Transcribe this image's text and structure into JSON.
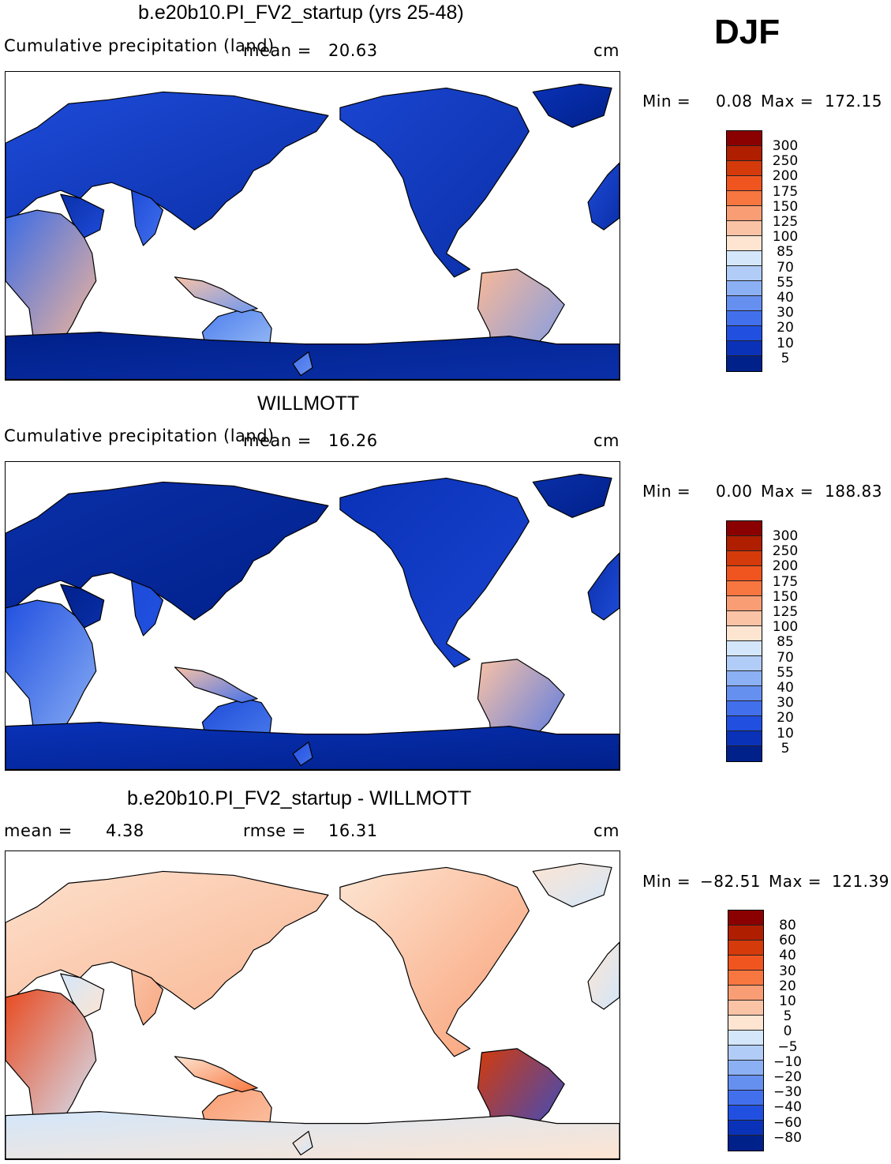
{
  "season": "DJF",
  "panels": [
    {
      "title": "b.e20b10.PI_FV2_startup (yrs 25-48)",
      "variable": "Cumulative precipitation (land)",
      "mean_label": "mean =",
      "mean_value": "20.63",
      "units": "cm",
      "min_label": "Min =",
      "min_value": "0.08",
      "max_label": "Max =",
      "max_value": "172.15",
      "field": "model"
    },
    {
      "title": "WILLMOTT",
      "variable": "Cumulative precipitation (land)",
      "mean_label": "mean =",
      "mean_value": "16.26",
      "units": "cm",
      "min_label": "Min =",
      "min_value": "0.00",
      "max_label": "Max =",
      "max_value": "188.83",
      "field": "obs"
    },
    {
      "title": "b.e20b10.PI_FV2_startup - WILLMOTT",
      "mean_label": "mean =",
      "mean_value": "4.38",
      "rmse_label": "rmse =",
      "rmse_value": "16.31",
      "units": "cm",
      "min_label": "Min =",
      "min_value": "−82.51",
      "max_label": "Max =",
      "max_value": "121.39",
      "field": "diff"
    }
  ],
  "colorbars": {
    "precip": {
      "labels": [
        "300",
        "250",
        "200",
        "175",
        "150",
        "125",
        "100",
        "85",
        "70",
        "55",
        "40",
        "30",
        "20",
        "10",
        "5"
      ],
      "colors": [
        "#8b0000",
        "#b01e00",
        "#d43a0a",
        "#f05520",
        "#f8763f",
        "#f99e74",
        "#fbc3a5",
        "#fde5d2",
        "#d3e6fa",
        "#b1cdf7",
        "#8cb0f4",
        "#6690f0",
        "#4270ec",
        "#2150e0",
        "#0a32b8",
        "#00208a"
      ]
    },
    "diff": {
      "labels": [
        "80",
        "60",
        "40",
        "30",
        "20",
        "10",
        "5",
        "0",
        "−5",
        "−10",
        "−20",
        "−30",
        "−40",
        "−60",
        "−80"
      ],
      "colors": [
        "#8b0000",
        "#b01e00",
        "#d43a0a",
        "#f05520",
        "#f8763f",
        "#f99e74",
        "#fbc3a5",
        "#fde5d2",
        "#d3e6fa",
        "#b1cdf7",
        "#8cb0f4",
        "#6690f0",
        "#4270ec",
        "#2150e0",
        "#0a32b8",
        "#00208a"
      ]
    }
  }
}
